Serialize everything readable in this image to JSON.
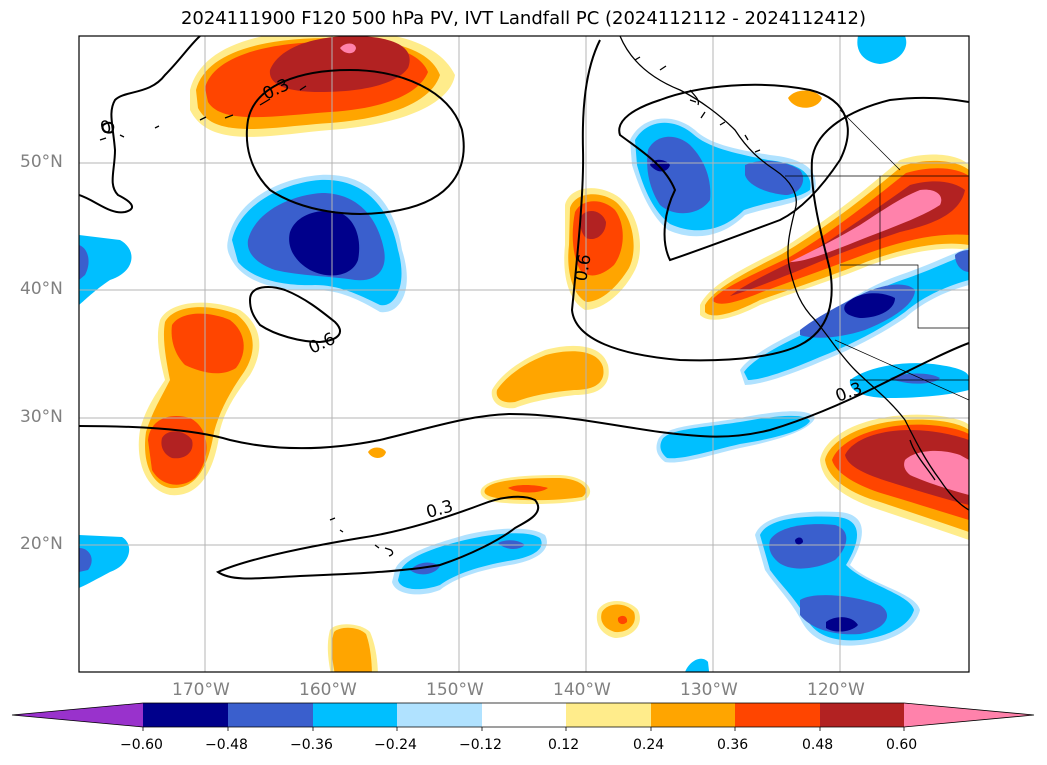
{
  "title": "2024111900 F120 500 hPa PV, IVT Landfall PC (2024112112 - 2024112412)",
  "lat_labels": [
    "50°N",
    "40°N",
    "30°N",
    "20°N"
  ],
  "lon_labels": [
    "170°W",
    "160°W",
    "150°W",
    "140°W",
    "130°W",
    "120°W"
  ],
  "contour_labels": [
    "0.3",
    "0.6",
    "0.6",
    "0.3",
    "0.3",
    "0"
  ],
  "colorbar": {
    "ticks": [
      "−0.60",
      "−0.48",
      "−0.36",
      "−0.24",
      "−0.12",
      "0.12",
      "0.24",
      "0.36",
      "0.48",
      "0.60"
    ],
    "colors": [
      "#9932cc",
      "#00008b",
      "#3a5fcd",
      "#00bfff",
      "#b0e2ff",
      "#ffffff",
      "#ffec8b",
      "#ffa500",
      "#ff4500",
      "#b22222",
      "#ff82ab"
    ]
  }
}
